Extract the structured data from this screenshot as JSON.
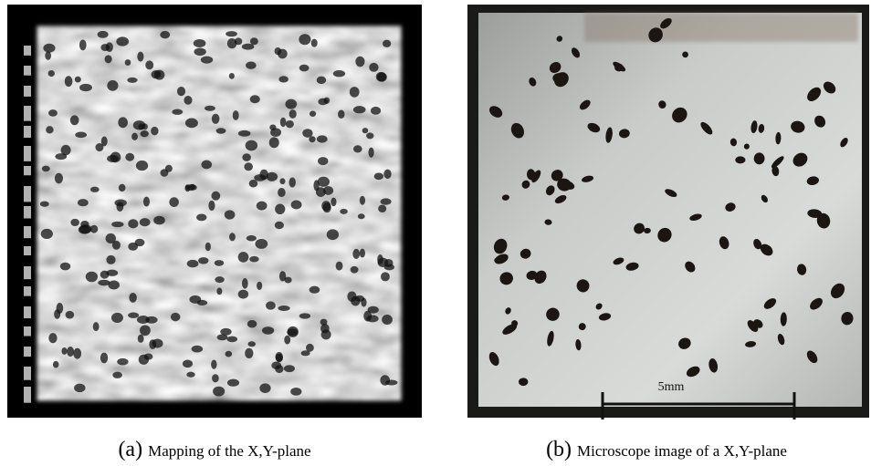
{
  "panels": [
    {
      "label": "(a)",
      "caption": "Mapping of the X,Y-plane"
    },
    {
      "label": "(b)",
      "caption": "Microscope image of a X,Y-plane",
      "scale_bar": "5mm"
    }
  ]
}
